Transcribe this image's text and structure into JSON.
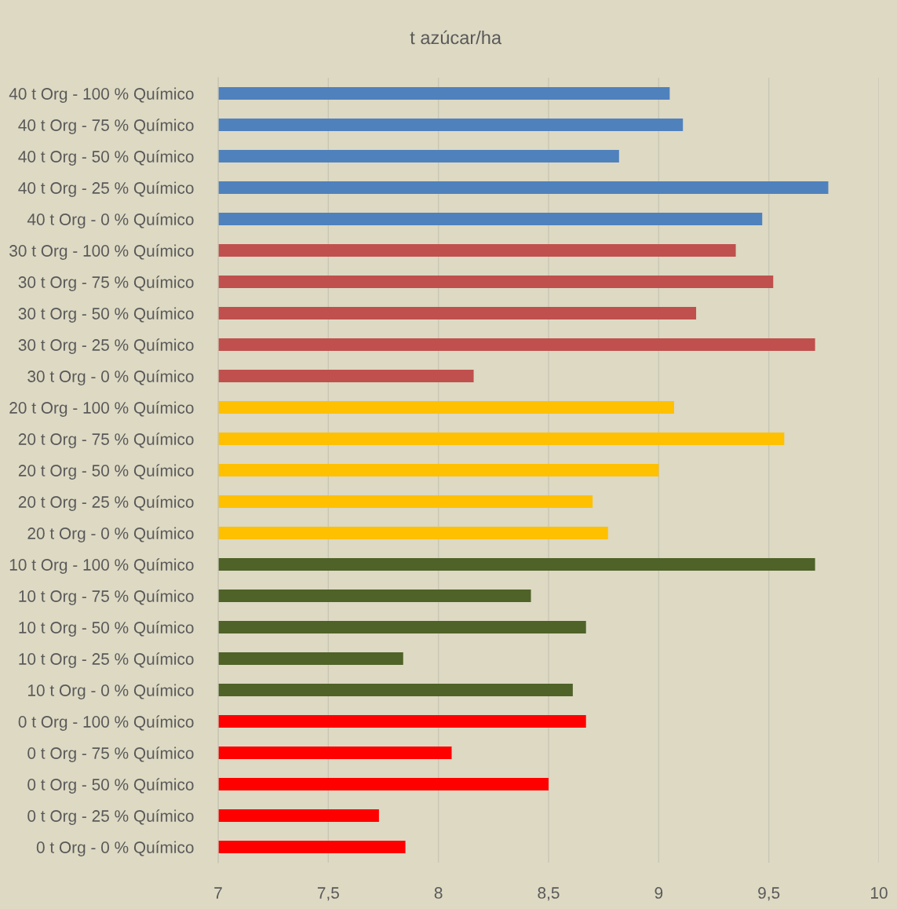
{
  "chart_data": {
    "type": "bar",
    "orientation": "horizontal",
    "title": "t azúcar/ha",
    "categories": [
      "40 t Org - 100 % Químico",
      "40 t Org - 75 % Químico",
      "40 t Org - 50 % Químico",
      "40 t Org - 25 % Químico",
      "40 t Org - 0 % Químico",
      "30 t Org - 100 % Químico",
      "30 t Org - 75 % Químico",
      "30 t Org - 50 % Químico",
      "30 t Org - 25 % Químico",
      "30 t Org - 0 % Químico",
      "20 t Org - 100 % Químico",
      "20 t Org - 75 % Químico",
      "20 t Org - 50 % Químico",
      "20 t Org - 25 % Químico",
      "20 t Org - 0 % Químico",
      "10 t Org - 100 % Químico",
      "10 t Org - 75 % Químico",
      "10 t Org - 50 % Químico",
      "10 t Org - 25 % Químico",
      "10 t Org - 0 % Químico",
      "0 t Org - 100 % Químico",
      "0 t Org - 75 % Químico",
      "0 t Org - 50 % Químico",
      "0 t Org - 25 % Químico",
      "0 t Org - 0 % Químico"
    ],
    "values": [
      9.05,
      9.11,
      8.82,
      9.77,
      9.47,
      9.35,
      9.52,
      9.17,
      9.71,
      8.16,
      9.07,
      9.57,
      9.0,
      8.7,
      8.77,
      9.71,
      8.42,
      8.67,
      7.84,
      8.61,
      8.67,
      8.06,
      8.5,
      7.73,
      7.85
    ],
    "colors": [
      "#4f81bd",
      "#4f81bd",
      "#4f81bd",
      "#4f81bd",
      "#4f81bd",
      "#c0504d",
      "#c0504d",
      "#c0504d",
      "#c0504d",
      "#c0504d",
      "#ffc000",
      "#ffc000",
      "#ffc000",
      "#ffc000",
      "#ffc000",
      "#4f6228",
      "#4f6228",
      "#4f6228",
      "#4f6228",
      "#4f6228",
      "#ff0000",
      "#ff0000",
      "#ff0000",
      "#ff0000",
      "#ff0000"
    ],
    "xlim": [
      7,
      10
    ],
    "xticks": [
      7,
      {
        "value": 7.5,
        "label": "7,5"
      },
      8,
      {
        "value": 8.5,
        "label": "8,5"
      },
      9,
      {
        "value": 9.5,
        "label": "9,5"
      },
      10
    ],
    "grid": "x",
    "legend": false
  }
}
